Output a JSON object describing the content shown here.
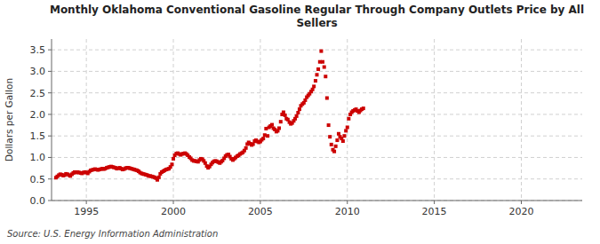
{
  "chart_data": {
    "type": "scatter",
    "title": "Monthly Oklahoma Conventional Gasoline Regular Through Company Outlets Price by All\nSellers",
    "y_label": "Dollars per Gallon",
    "annotations": [
      "Source: U.S. Energy Information Administration"
    ],
    "color": "#cc0000",
    "marker": "square",
    "grid": true,
    "xlim": [
      1993.0,
      2023.5
    ],
    "ylim": [
      0.0,
      3.75
    ],
    "xticks": [
      1995,
      2000,
      2005,
      2010,
      2015,
      2020
    ],
    "yticks": [
      {
        "value": 0.0,
        "label": "0.0"
      },
      0.5,
      {
        "value": 1.0,
        "label": "1.0"
      },
      1.5,
      {
        "value": 2.0,
        "label": "2.0"
      },
      2.5,
      {
        "value": 3.0,
        "label": "3.0"
      },
      3.5
    ],
    "x": [
      1993.25,
      1993.33,
      1993.42,
      1993.5,
      1993.58,
      1993.67,
      1993.75,
      1993.83,
      1993.92,
      1994.0,
      1994.08,
      1994.17,
      1994.25,
      1994.33,
      1994.42,
      1994.5,
      1994.58,
      1994.67,
      1994.75,
      1994.83,
      1994.92,
      1995.0,
      1995.08,
      1995.17,
      1995.25,
      1995.33,
      1995.42,
      1995.5,
      1995.58,
      1995.67,
      1995.75,
      1995.83,
      1995.92,
      1996.0,
      1996.08,
      1996.17,
      1996.25,
      1996.33,
      1996.42,
      1996.5,
      1996.58,
      1996.67,
      1996.75,
      1996.83,
      1996.92,
      1997.0,
      1997.08,
      1997.17,
      1997.25,
      1997.33,
      1997.42,
      1997.5,
      1997.58,
      1997.67,
      1997.75,
      1997.83,
      1997.92,
      1998.0,
      1998.08,
      1998.17,
      1998.25,
      1998.33,
      1998.42,
      1998.5,
      1998.58,
      1998.67,
      1998.75,
      1998.83,
      1998.92,
      1999.0,
      1999.08,
      1999.17,
      1999.25,
      1999.33,
      1999.42,
      1999.5,
      1999.58,
      1999.67,
      1999.75,
      1999.83,
      1999.92,
      2000.0,
      2000.08,
      2000.17,
      2000.25,
      2000.33,
      2000.42,
      2000.5,
      2000.58,
      2000.67,
      2000.75,
      2000.83,
      2000.92,
      2001.0,
      2001.08,
      2001.17,
      2001.25,
      2001.33,
      2001.42,
      2001.5,
      2001.58,
      2001.67,
      2001.75,
      2001.83,
      2001.92,
      2002.0,
      2002.08,
      2002.17,
      2002.25,
      2002.33,
      2002.42,
      2002.5,
      2002.58,
      2002.67,
      2002.75,
      2002.83,
      2002.92,
      2003.0,
      2003.08,
      2003.17,
      2003.25,
      2003.33,
      2003.42,
      2003.5,
      2003.58,
      2003.67,
      2003.75,
      2003.83,
      2003.92,
      2004.0,
      2004.08,
      2004.17,
      2004.25,
      2004.33,
      2004.42,
      2004.5,
      2004.58,
      2004.67,
      2004.75,
      2004.83,
      2004.92,
      2005.0,
      2005.08,
      2005.17,
      2005.25,
      2005.33,
      2005.42,
      2005.5,
      2005.58,
      2005.67,
      2005.75,
      2005.83,
      2005.92,
      2006.0,
      2006.08,
      2006.17,
      2006.25,
      2006.33,
      2006.42,
      2006.5,
      2006.58,
      2006.67,
      2006.75,
      2006.83,
      2006.92,
      2007.0,
      2007.08,
      2007.17,
      2007.25,
      2007.33,
      2007.42,
      2007.5,
      2007.58,
      2007.67,
      2007.75,
      2007.83,
      2007.92,
      2008.0,
      2008.08,
      2008.17,
      2008.25,
      2008.33,
      2008.42,
      2008.5,
      2008.58,
      2008.67,
      2008.75,
      2008.83,
      2008.92,
      2009.0,
      2009.08,
      2009.17,
      2009.25,
      2009.33,
      2009.42,
      2009.5,
      2009.58,
      2009.67,
      2009.75,
      2009.83,
      2009.92,
      2010.0,
      2010.08,
      2010.17,
      2010.25,
      2010.33,
      2010.42,
      2010.5,
      2010.58,
      2010.67,
      2010.75,
      2010.83,
      2010.92
    ],
    "values": [
      0.53,
      0.56,
      0.59,
      0.61,
      0.6,
      0.58,
      0.59,
      0.62,
      0.61,
      0.59,
      0.57,
      0.61,
      0.64,
      0.66,
      0.65,
      0.66,
      0.65,
      0.64,
      0.63,
      0.65,
      0.66,
      0.65,
      0.63,
      0.67,
      0.7,
      0.71,
      0.72,
      0.73,
      0.72,
      0.71,
      0.72,
      0.73,
      0.74,
      0.73,
      0.74,
      0.76,
      0.77,
      0.78,
      0.79,
      0.78,
      0.77,
      0.76,
      0.74,
      0.75,
      0.76,
      0.74,
      0.72,
      0.73,
      0.75,
      0.76,
      0.76,
      0.75,
      0.74,
      0.73,
      0.72,
      0.71,
      0.7,
      0.68,
      0.65,
      0.63,
      0.62,
      0.61,
      0.6,
      0.59,
      0.57,
      0.57,
      0.56,
      0.55,
      0.54,
      0.52,
      0.48,
      0.54,
      0.62,
      0.66,
      0.68,
      0.7,
      0.72,
      0.73,
      0.74,
      0.78,
      0.84,
      0.97,
      1.05,
      1.09,
      1.1,
      1.08,
      1.06,
      1.08,
      1.09,
      1.1,
      1.08,
      1.05,
      1.01,
      0.98,
      0.94,
      0.92,
      0.92,
      0.91,
      0.9,
      0.94,
      0.97,
      0.96,
      0.92,
      0.87,
      0.8,
      0.76,
      0.79,
      0.84,
      0.88,
      0.91,
      0.92,
      0.91,
      0.89,
      0.87,
      0.9,
      0.93,
      0.98,
      1.03,
      1.06,
      1.07,
      1.02,
      0.97,
      0.94,
      0.97,
      1.0,
      1.03,
      1.05,
      1.08,
      1.1,
      1.12,
      1.16,
      1.22,
      1.31,
      1.35,
      1.32,
      1.29,
      1.31,
      1.38,
      1.4,
      1.37,
      1.35,
      1.37,
      1.41,
      1.44,
      1.52,
      1.67,
      1.5,
      1.7,
      1.73,
      1.76,
      1.68,
      1.65,
      1.6,
      1.62,
      1.68,
      1.83,
      2.0,
      2.05,
      1.98,
      1.9,
      1.88,
      1.82,
      1.78,
      1.8,
      1.85,
      1.9,
      1.96,
      2.04,
      2.12,
      2.2,
      2.24,
      2.27,
      2.33,
      2.4,
      2.44,
      2.48,
      2.53,
      2.58,
      2.65,
      2.78,
      2.92,
      3.05,
      3.22,
      3.47,
      3.22,
      3.1,
      2.88,
      2.38,
      1.75,
      1.48,
      1.3,
      1.18,
      1.14,
      1.26,
      1.4,
      1.55,
      1.48,
      1.44,
      1.38,
      1.5,
      1.62,
      1.7,
      1.9,
      2.0,
      2.05,
      2.08,
      2.1,
      2.12,
      2.08,
      2.05,
      2.09,
      2.12,
      2.14
    ]
  }
}
